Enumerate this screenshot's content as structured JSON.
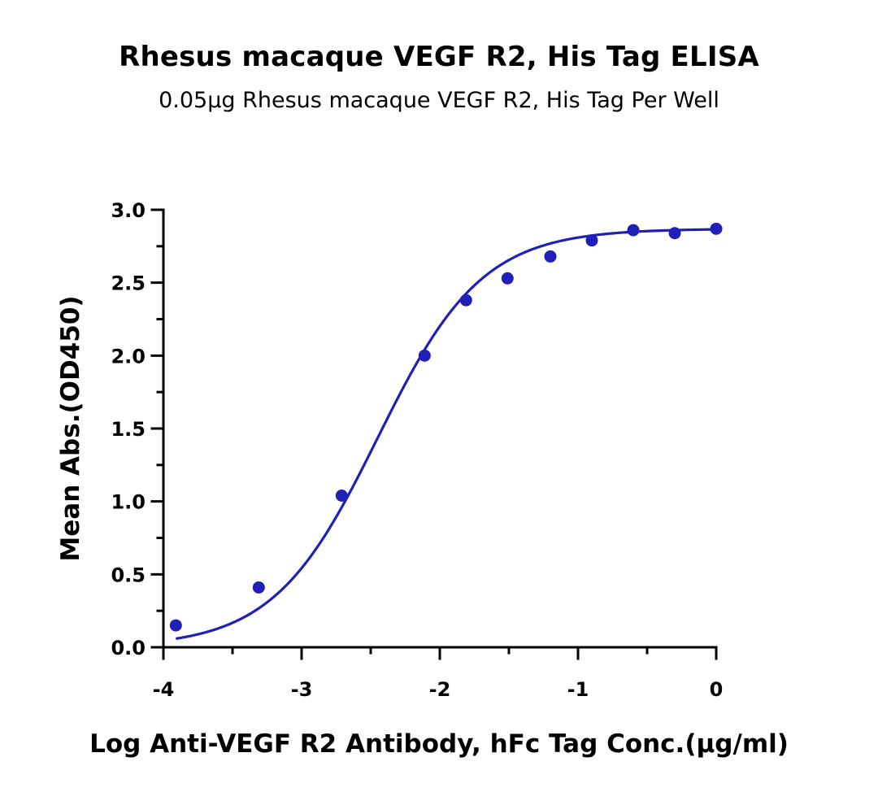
{
  "chart_data": {
    "type": "scatter",
    "title": "Rhesus macaque VEGF R2, His Tag ELISA",
    "subtitle": "0.05μg Rhesus macaque VEGF R2, His Tag Per Well",
    "xlabel": "Log Anti-VEGF R2 Antibody, hFc Tag Conc.(μg/ml)",
    "ylabel": "Mean Abs.(OD450)",
    "xlim": [
      -4,
      0
    ],
    "ylim": [
      0,
      3.0
    ],
    "x_ticks": [
      "-4",
      "-3",
      "-2",
      "-1",
      "0"
    ],
    "y_ticks": [
      "0.0",
      "0.5",
      "1.0",
      "1.5",
      "2.0",
      "2.5",
      "3.0"
    ],
    "grid": false,
    "series_color": "#2020b8",
    "series": [
      {
        "points": [
          {
            "x": -3.91,
            "y": 0.15
          },
          {
            "x": -3.31,
            "y": 0.41
          },
          {
            "x": -2.71,
            "y": 1.04
          },
          {
            "x": -2.11,
            "y": 2.0
          },
          {
            "x": -1.81,
            "y": 2.38
          },
          {
            "x": -1.51,
            "y": 2.53
          },
          {
            "x": -1.2,
            "y": 2.68
          },
          {
            "x": -0.9,
            "y": 2.79
          },
          {
            "x": -0.6,
            "y": 2.86
          },
          {
            "x": -0.3,
            "y": 2.84
          },
          {
            "x": 0.0,
            "y": 2.87
          }
        ],
        "fit": {
          "bottom": 0.0,
          "top": 2.87,
          "logEC50": -2.45,
          "hill": 1.15
        }
      }
    ]
  }
}
